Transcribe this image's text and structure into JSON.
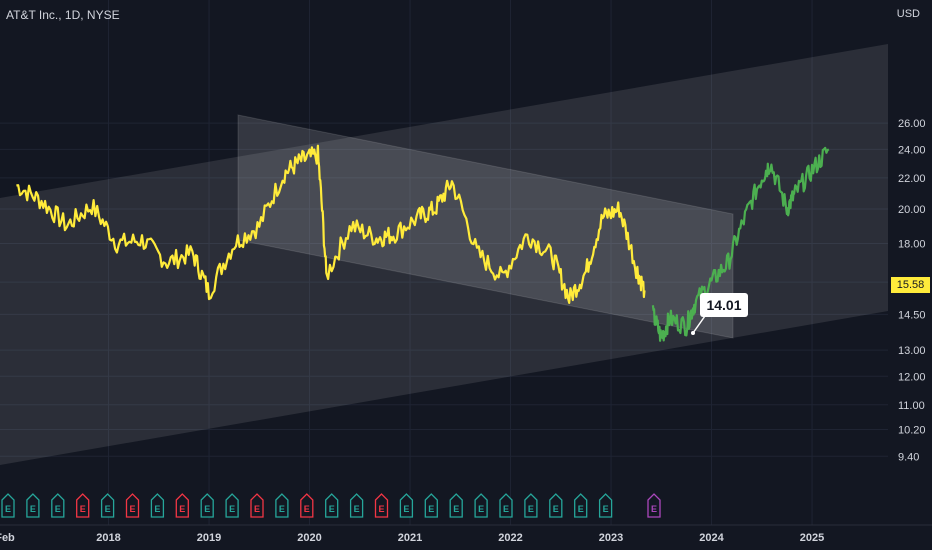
{
  "header": {
    "symbol_line": "AT&T Inc., 1D, NYSE",
    "currency": "USD"
  },
  "chart_data": {
    "type": "line",
    "y_scale": "log",
    "ylim": [
      9.0,
      28.0
    ],
    "y_ticks": [
      "26.00",
      "24.00",
      "22.00",
      "20.00",
      "18.00",
      "16.00",
      "14.50",
      "13.00",
      "12.00",
      "11.00",
      "10.20",
      "9.40"
    ],
    "x_ticks": [
      "Feb",
      "2018",
      "2019",
      "2020",
      "2021",
      "2022",
      "2023",
      "2024",
      "2025"
    ],
    "grid": true,
    "last_price": "15.58",
    "annotation": "14.01",
    "series": [
      {
        "color": "#ffeb3b",
        "x": [
          "2017-02",
          "2017-05",
          "2017-08",
          "2017-11",
          "2018-02",
          "2018-05",
          "2018-08",
          "2018-11",
          "2019-01",
          "2019-04",
          "2019-07",
          "2019-10",
          "2019-12",
          "2020-02",
          "2020-03",
          "2020-06",
          "2020-09",
          "2020-11",
          "2021-02",
          "2021-04",
          "2021-06",
          "2021-09",
          "2021-12",
          "2022-03",
          "2022-06",
          "2022-08",
          "2022-10",
          "2022-12",
          "2023-02",
          "2023-04",
          "2023-05"
        ],
        "y": [
          21.5,
          20.5,
          19.0,
          20.2,
          18.0,
          18.2,
          17.0,
          17.5,
          15.5,
          18.0,
          19.0,
          22.3,
          23.2,
          23.6,
          16.3,
          19.0,
          18.3,
          18.5,
          19.5,
          20.0,
          21.7,
          17.5,
          16.2,
          18.5,
          17.3,
          15.2,
          16.5,
          19.5,
          20.0,
          16.7,
          15.6
        ]
      },
      {
        "color": "#4caf50",
        "x": [
          "2023-06",
          "2023-07",
          "2023-08",
          "2023-10",
          "2023-11",
          "2024-01",
          "2024-03",
          "2024-05",
          "2024-07",
          "2024-08",
          "2024-10",
          "2024-11",
          "2025-01",
          "2025-03"
        ],
        "y": [
          14.5,
          13.5,
          14.3,
          14.0,
          15.0,
          16.0,
          17.0,
          19.5,
          22.0,
          23.0,
          20.0,
          21.0,
          22.5,
          24.0
        ]
      }
    ],
    "events": {
      "labels": [
        "E",
        "E",
        "E",
        "E",
        "E",
        "E",
        "E",
        "E",
        "E",
        "E",
        "E",
        "E",
        "E",
        "E",
        "E",
        "E",
        "E",
        "E",
        "E",
        "E",
        "E",
        "E",
        "E",
        "E",
        "E",
        "E"
      ],
      "colors": [
        "#26a69a",
        "#26a69a",
        "#26a69a",
        "#f23645",
        "#26a69a",
        "#f23645",
        "#26a69a",
        "#f23645",
        "#26a69a",
        "#26a69a",
        "#f23645",
        "#26a69a",
        "#f23645",
        "#26a69a",
        "#26a69a",
        "#f23645",
        "#26a69a",
        "#26a69a",
        "#26a69a",
        "#26a69a",
        "#26a69a",
        "#26a69a",
        "#26a69a",
        "#26a69a",
        "#26a69a",
        "#ab47bc"
      ]
    }
  }
}
